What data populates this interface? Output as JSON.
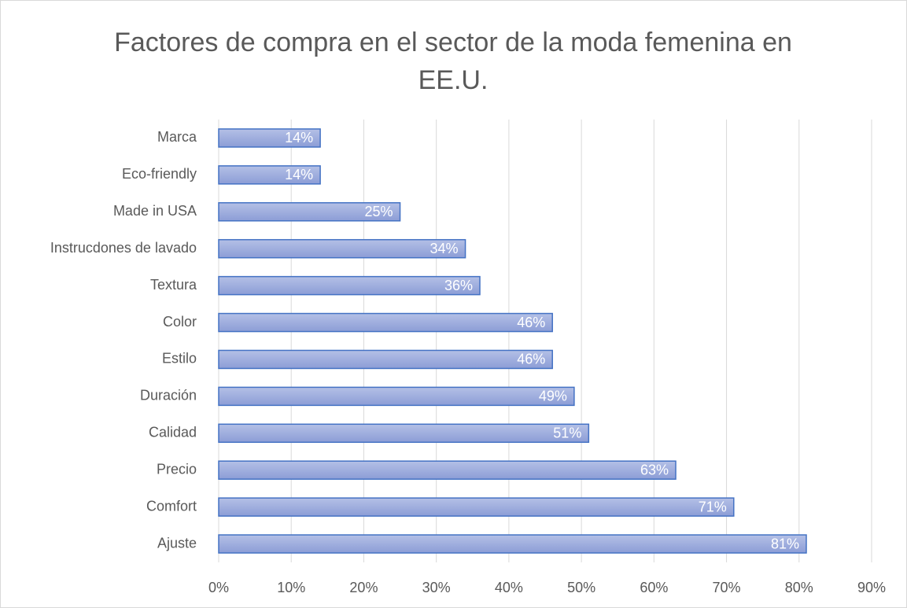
{
  "chart_data": {
    "type": "bar",
    "orientation": "horizontal",
    "title": "Factores de compra en el sector de la moda femenina en EE.U.",
    "categories": [
      "Marca",
      "Eco-friendly",
      "Made in USA",
      "Instrucdones de lavado",
      "Textura",
      "Color",
      "Estilo",
      "Duración",
      "Calidad",
      "Precio",
      "Comfort",
      "Ajuste"
    ],
    "values": [
      14,
      14,
      25,
      34,
      36,
      46,
      46,
      49,
      51,
      63,
      71,
      81
    ],
    "value_labels": [
      "14%",
      "14%",
      "25%",
      "34%",
      "36%",
      "46%",
      "46%",
      "49%",
      "51%",
      "63%",
      "71%",
      "81%"
    ],
    "color": "#4472c4",
    "xlim": [
      0,
      90
    ],
    "xticks": [
      {
        "value": 0,
        "label": "0%"
      },
      {
        "value": 10,
        "label": "10%"
      },
      {
        "value": 20,
        "label": "20%"
      },
      {
        "value": 30,
        "label": "30%"
      },
      {
        "value": 40,
        "label": "40%"
      },
      {
        "value": 50,
        "label": "50%"
      },
      {
        "value": 60,
        "label": "60%"
      },
      {
        "value": 70,
        "label": "70%"
      },
      {
        "value": 80,
        "label": "80%"
      },
      {
        "value": 90,
        "label": "90%"
      }
    ],
    "grid": true
  }
}
